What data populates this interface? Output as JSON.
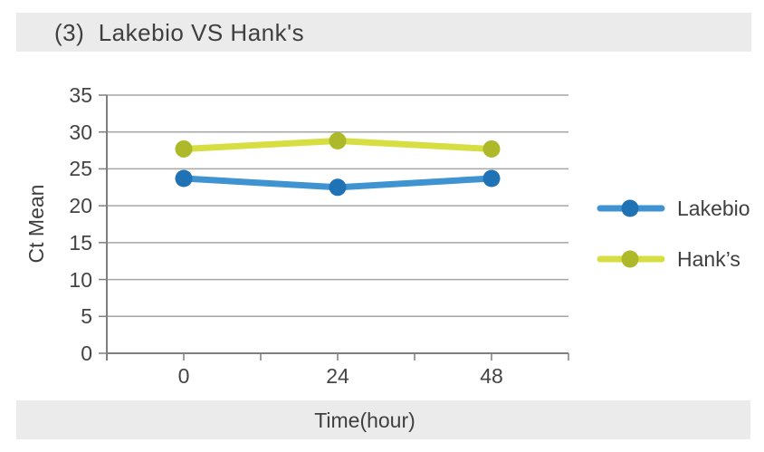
{
  "header": {
    "title": "(3)  Lakebio VS Hank's"
  },
  "chart_data": {
    "type": "line",
    "title": "(3) Lakebio VS Hank's",
    "categories": [
      0,
      24,
      48
    ],
    "series": [
      {
        "name": "Lakebio",
        "values": [
          23.7,
          22.5,
          23.7
        ],
        "line_color": "#3F93D1",
        "marker_color": "#1F72B4"
      },
      {
        "name": "Hank’s",
        "values": [
          27.7,
          28.8,
          27.7
        ],
        "line_color": "#D6DE41",
        "marker_color": "#AEB92A"
      }
    ],
    "xlabel": "Time(hour)",
    "ylabel": "Ct Mean",
    "ylim": [
      0,
      35
    ],
    "yticks": [
      0,
      5,
      10,
      15,
      20,
      25,
      30,
      35
    ],
    "grid": true,
    "legend_position": "right"
  },
  "colors": {
    "banner_bg": "#EBEBEB",
    "text": "#3F3F3F",
    "gridline": "#A6A6A6",
    "axis": "#7F7F7F"
  }
}
